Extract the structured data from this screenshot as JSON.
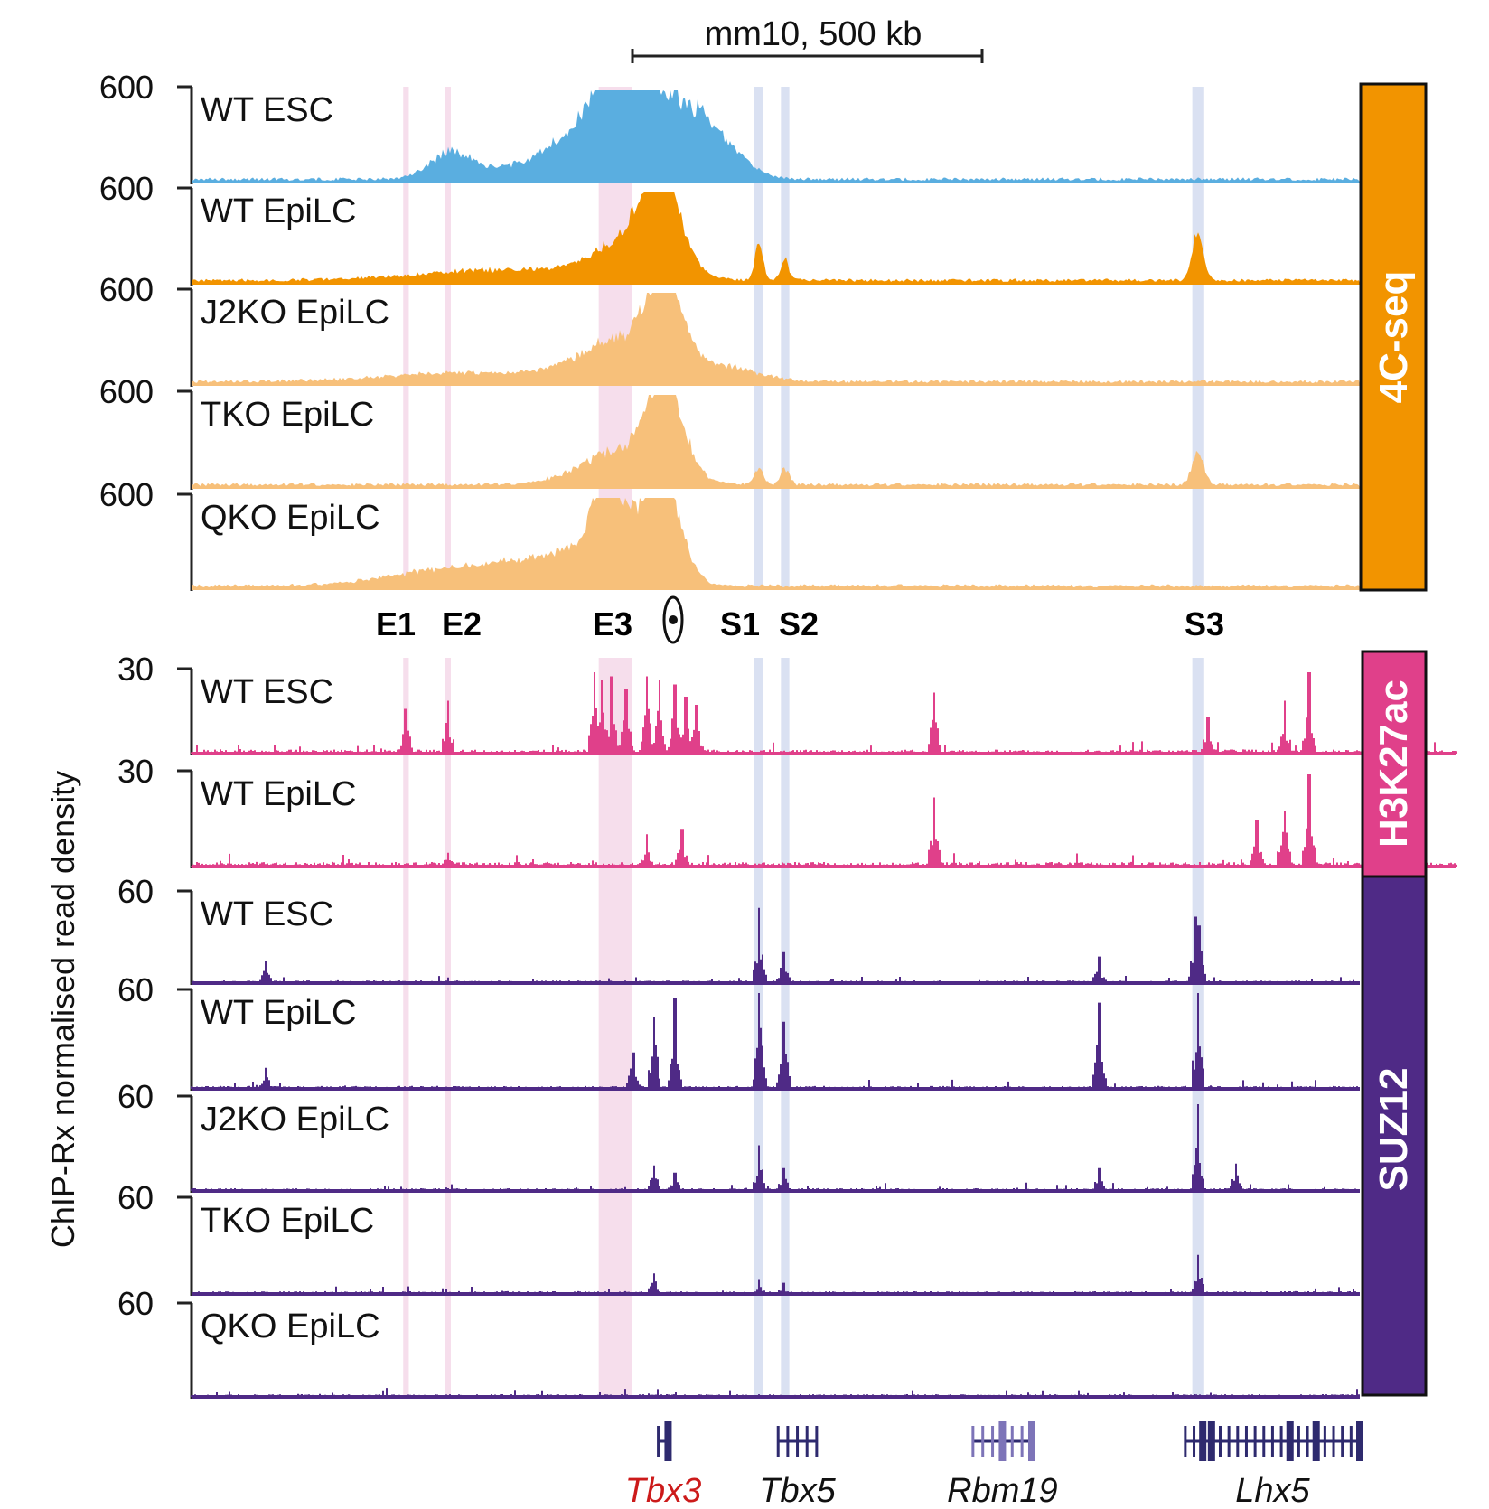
{
  "figure": {
    "scale_bar_label": "mm10, 500 kb",
    "y_axis_title": "ChIP-Rx normalised read density",
    "element_labels": {
      "e1": "E1",
      "e2": "E2",
      "e3": "E3",
      "s1": "S1",
      "s2": "S2",
      "s3": "S3"
    },
    "viewpoint_symbol": "viewpoint",
    "colors": {
      "esc_4c": "#5aaee0",
      "wt_epilc_4c": "#f29400",
      "ko_4c": "#f7c07a",
      "h3k27ac": "#e0408a",
      "suz12": "#4f2a86",
      "enhancer_band": "#f3d3e6",
      "silencer_band": "#cdd7ee",
      "gene_color": "#2e2a6e",
      "tbx3_label": "#cc1a1a"
    }
  },
  "chart_data": {
    "type": "area",
    "x_range_kb": [
      0,
      1667
    ],
    "regions": [
      {
        "label": "E1",
        "type": "enhancer",
        "start_kb": 302,
        "end_kb": 310
      },
      {
        "label": "E2",
        "type": "enhancer",
        "start_kb": 362,
        "end_kb": 370
      },
      {
        "label": "E3",
        "type": "enhancer",
        "start_kb": 581,
        "end_kb": 628
      },
      {
        "label": "S1",
        "type": "silencer",
        "start_kb": 803,
        "end_kb": 815
      },
      {
        "label": "S2",
        "type": "silencer",
        "start_kb": 841,
        "end_kb": 853
      },
      {
        "label": "S3",
        "type": "silencer",
        "start_kb": 1428,
        "end_kb": 1445
      }
    ],
    "viewpoint_kb": 685,
    "groups": [
      {
        "name": "4C-seq",
        "tracks": [
          {
            "name": "WT ESC",
            "ymax": 600,
            "color_key": "esc_4c",
            "peaks": [
              {
                "x": 640,
                "h": 1.0,
                "w": 60
              },
              {
                "x": 600,
                "h": 0.78,
                "w": 18
              },
              {
                "x": 370,
                "h": 0.28,
                "w": 30
              },
              {
                "x": 550,
                "h": 0.3,
                "w": 80
              },
              {
                "x": 740,
                "h": 0.4,
                "w": 40
              }
            ]
          },
          {
            "name": "WT EpiLC",
            "ymax": 600,
            "color_key": "wt_epilc_4c",
            "peaks": [
              {
                "x": 672,
                "h": 1.0,
                "w": 25
              },
              {
                "x": 630,
                "h": 0.45,
                "w": 50
              },
              {
                "x": 810,
                "h": 0.42,
                "w": 6
              },
              {
                "x": 847,
                "h": 0.22,
                "w": 6
              },
              {
                "x": 1436,
                "h": 0.52,
                "w": 8
              },
              {
                "x": 450,
                "h": 0.12,
                "w": 120
              }
            ]
          },
          {
            "name": "J2KO EpiLC",
            "ymax": 600,
            "color_key": "ko_4c",
            "peaks": [
              {
                "x": 675,
                "h": 1.0,
                "w": 24
              },
              {
                "x": 615,
                "h": 0.45,
                "w": 60
              },
              {
                "x": 760,
                "h": 0.15,
                "w": 50
              },
              {
                "x": 400,
                "h": 0.1,
                "w": 120
              }
            ]
          },
          {
            "name": "TKO EpiLC",
            "ymax": 600,
            "color_key": "ko_4c",
            "peaks": [
              {
                "x": 675,
                "h": 1.0,
                "w": 24
              },
              {
                "x": 620,
                "h": 0.38,
                "w": 60
              },
              {
                "x": 810,
                "h": 0.2,
                "w": 6
              },
              {
                "x": 847,
                "h": 0.18,
                "w": 6
              },
              {
                "x": 1436,
                "h": 0.38,
                "w": 8
              }
            ]
          },
          {
            "name": "QKO EpiLC",
            "ymax": 600,
            "color_key": "ko_4c",
            "peaks": [
              {
                "x": 675,
                "h": 1.0,
                "w": 24
              },
              {
                "x": 590,
                "h": 0.85,
                "w": 14
              },
              {
                "x": 620,
                "h": 0.6,
                "w": 40
              },
              {
                "x": 540,
                "h": 0.3,
                "w": 70
              },
              {
                "x": 380,
                "h": 0.2,
                "w": 90
              }
            ]
          }
        ]
      },
      {
        "name": "H3K27ac",
        "tracks": [
          {
            "name": "WT ESC",
            "ymax": 30,
            "color_key": "h3k27ac",
            "spikes": [
              {
                "x": 306,
                "h": 0.55
              },
              {
                "x": 366,
                "h": 0.65
              },
              {
                "x": 575,
                "h": 1.0
              },
              {
                "x": 585,
                "h": 0.9
              },
              {
                "x": 600,
                "h": 0.95
              },
              {
                "x": 620,
                "h": 0.8
              },
              {
                "x": 650,
                "h": 0.95
              },
              {
                "x": 668,
                "h": 0.9
              },
              {
                "x": 690,
                "h": 0.85
              },
              {
                "x": 705,
                "h": 0.7
              },
              {
                "x": 720,
                "h": 0.6
              },
              {
                "x": 1060,
                "h": 0.75
              },
              {
                "x": 1450,
                "h": 0.45
              },
              {
                "x": 1560,
                "h": 0.65
              },
              {
                "x": 1595,
                "h": 1.0
              }
            ]
          },
          {
            "name": "WT EpiLC",
            "ymax": 30,
            "color_key": "h3k27ac",
            "spikes": [
              {
                "x": 366,
                "h": 0.15
              },
              {
                "x": 650,
                "h": 0.35
              },
              {
                "x": 700,
                "h": 0.4
              },
              {
                "x": 1060,
                "h": 0.75
              },
              {
                "x": 1520,
                "h": 0.5
              },
              {
                "x": 1560,
                "h": 0.6
              },
              {
                "x": 1595,
                "h": 1.0
              }
            ]
          }
        ]
      },
      {
        "name": "SUZ12",
        "tracks": [
          {
            "name": "WT ESC",
            "ymax": 60,
            "color_key": "suz12",
            "spikes": [
              {
                "x": 106,
                "h": 0.25
              },
              {
                "x": 810,
                "h": 0.85
              },
              {
                "x": 845,
                "h": 0.35
              },
              {
                "x": 1295,
                "h": 0.3
              },
              {
                "x": 1432,
                "h": 0.75
              },
              {
                "x": 1438,
                "h": 0.65
              }
            ]
          },
          {
            "name": "WT EpiLC",
            "ymax": 60,
            "color_key": "suz12",
            "spikes": [
              {
                "x": 106,
                "h": 0.22
              },
              {
                "x": 630,
                "h": 0.38
              },
              {
                "x": 660,
                "h": 0.75
              },
              {
                "x": 690,
                "h": 0.95
              },
              {
                "x": 810,
                "h": 1.0
              },
              {
                "x": 845,
                "h": 0.7
              },
              {
                "x": 1295,
                "h": 0.9
              },
              {
                "x": 1436,
                "h": 1.0
              }
            ]
          },
          {
            "name": "J2KO EpiLC",
            "ymax": 60,
            "color_key": "suz12",
            "spikes": [
              {
                "x": 660,
                "h": 0.28
              },
              {
                "x": 690,
                "h": 0.2
              },
              {
                "x": 810,
                "h": 0.5
              },
              {
                "x": 845,
                "h": 0.25
              },
              {
                "x": 1295,
                "h": 0.25
              },
              {
                "x": 1436,
                "h": 0.95
              },
              {
                "x": 1490,
                "h": 0.3
              }
            ]
          },
          {
            "name": "TKO EpiLC",
            "ymax": 60,
            "color_key": "suz12",
            "spikes": [
              {
                "x": 660,
                "h": 0.22
              },
              {
                "x": 810,
                "h": 0.15
              },
              {
                "x": 845,
                "h": 0.12
              },
              {
                "x": 1436,
                "h": 0.42
              }
            ]
          },
          {
            "name": "QKO EpiLC",
            "ymax": 60,
            "color_key": "suz12",
            "spikes": []
          }
        ]
      }
    ],
    "genes": [
      {
        "name": "Tbx3",
        "start_kb": 666,
        "end_kb": 680,
        "color_key": "tbx3_label"
      },
      {
        "name": "Tbx5",
        "start_kb": 837,
        "end_kb": 892,
        "color_key": "gene_color"
      },
      {
        "name": "Rbm19",
        "start_kb": 1115,
        "end_kb": 1199,
        "color_key": "gene_color"
      },
      {
        "name": "Lhx5",
        "start_kb": 1418,
        "end_kb": 1667,
        "color_key": "gene_color"
      }
    ]
  }
}
